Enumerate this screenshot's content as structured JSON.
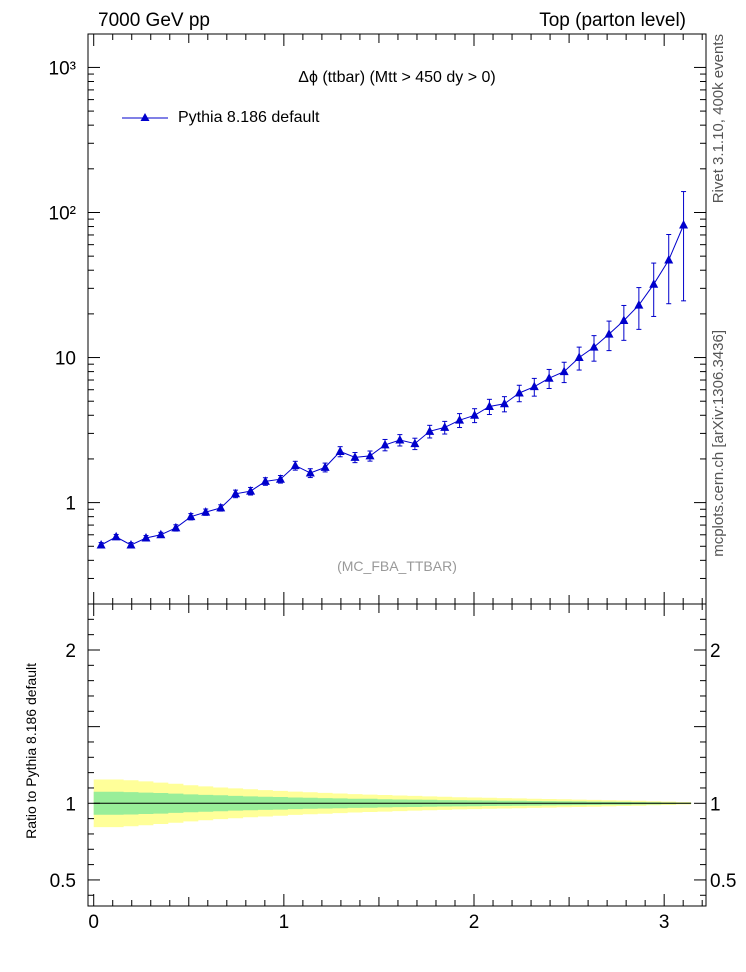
{
  "header": {
    "left": "7000 GeV pp",
    "right": "Top (parton level)"
  },
  "side_labels": {
    "rivet": "Rivet 3.1.10,  400k events",
    "mcplots": "mcplots.cern.ch [arXiv:1306.3436]"
  },
  "colors": {
    "series": "#0000cc",
    "band_inner": "#99ee99",
    "band_outer": "#ffff99",
    "watermark": "#999999"
  },
  "chart_data": [
    {
      "type": "line",
      "title": "Δϕ (ttbar) (Mtt > 450 dy > 0)",
      "watermark": "(MC_FBA_TTBAR)",
      "yscale": "log",
      "xlim": [
        -0.03,
        3.22
      ],
      "ylim": [
        0.2,
        1700
      ],
      "y_ticks": [
        {
          "value": 1,
          "label": "1"
        },
        {
          "value": 10,
          "label": "10"
        },
        {
          "value": 100,
          "label": "10²"
        },
        {
          "value": 1000,
          "label": "10³"
        }
      ],
      "legend": {
        "position": "top-left",
        "entries": [
          "Pythia 8.186 default"
        ]
      },
      "series": [
        {
          "name": "Pythia 8.186 default",
          "marker": "triangle",
          "x": [
            0.039,
            0.118,
            0.196,
            0.275,
            0.353,
            0.432,
            0.511,
            0.589,
            0.668,
            0.746,
            0.825,
            0.903,
            0.982,
            1.06,
            1.139,
            1.217,
            1.296,
            1.374,
            1.453,
            1.532,
            1.61,
            1.689,
            1.767,
            1.846,
            1.924,
            2.003,
            2.081,
            2.16,
            2.238,
            2.317,
            2.395,
            2.474,
            2.553,
            2.631,
            2.71,
            2.788,
            2.867,
            2.945,
            3.024,
            3.102
          ],
          "values": [
            0.51,
            0.58,
            0.51,
            0.57,
            0.6,
            0.67,
            0.8,
            0.86,
            0.92,
            1.15,
            1.2,
            1.4,
            1.45,
            1.8,
            1.6,
            1.75,
            2.25,
            2.05,
            2.1,
            2.5,
            2.7,
            2.55,
            3.1,
            3.3,
            3.7,
            4.0,
            4.6,
            4.8,
            5.7,
            6.3,
            7.2,
            8.0,
            10.0,
            11.8,
            14.5,
            18.0,
            23.0,
            32.0,
            47.0,
            82.0
          ],
          "err": [
            0.04,
            0.04,
            0.04,
            0.04,
            0.04,
            0.05,
            0.05,
            0.05,
            0.05,
            0.06,
            0.06,
            0.06,
            0.06,
            0.07,
            0.07,
            0.07,
            0.08,
            0.08,
            0.08,
            0.09,
            0.09,
            0.09,
            0.1,
            0.1,
            0.11,
            0.11,
            0.12,
            0.12,
            0.13,
            0.14,
            0.15,
            0.16,
            0.18,
            0.2,
            0.23,
            0.27,
            0.32,
            0.4,
            0.5,
            0.7
          ]
        }
      ]
    },
    {
      "type": "area",
      "ylabel": "Ratio to Pythia 8.186 default",
      "xlim": [
        -0.03,
        3.22
      ],
      "ylim": [
        0.33,
        2.3
      ],
      "x_ticks": [
        {
          "value": 0,
          "label": "0"
        },
        {
          "value": 1,
          "label": "1"
        },
        {
          "value": 2,
          "label": "2"
        },
        {
          "value": 3,
          "label": "3"
        }
      ],
      "y_ticks": [
        {
          "value": 0.5,
          "label": "0.5"
        },
        {
          "value": 1,
          "label": "1"
        },
        {
          "value": 2,
          "label": "2"
        }
      ],
      "reference_line": 1,
      "bands": {
        "inner_halfwidth": [
          0.075,
          0.075,
          0.073,
          0.07,
          0.067,
          0.063,
          0.058,
          0.055,
          0.052,
          0.048,
          0.045,
          0.043,
          0.041,
          0.038,
          0.036,
          0.034,
          0.032,
          0.03,
          0.029,
          0.027,
          0.025,
          0.024,
          0.023,
          0.021,
          0.02,
          0.019,
          0.018,
          0.017,
          0.016,
          0.015,
          0.014,
          0.013,
          0.012,
          0.011,
          0.01,
          0.009,
          0.008,
          0.007,
          0.005,
          0.004
        ],
        "outer_halfwidth": [
          0.155,
          0.155,
          0.15,
          0.143,
          0.135,
          0.127,
          0.118,
          0.11,
          0.103,
          0.097,
          0.091,
          0.086,
          0.081,
          0.076,
          0.072,
          0.068,
          0.064,
          0.06,
          0.057,
          0.054,
          0.051,
          0.048,
          0.045,
          0.043,
          0.04,
          0.038,
          0.036,
          0.034,
          0.032,
          0.03,
          0.028,
          0.026,
          0.024,
          0.022,
          0.02,
          0.018,
          0.016,
          0.013,
          0.011,
          0.008
        ]
      }
    }
  ]
}
